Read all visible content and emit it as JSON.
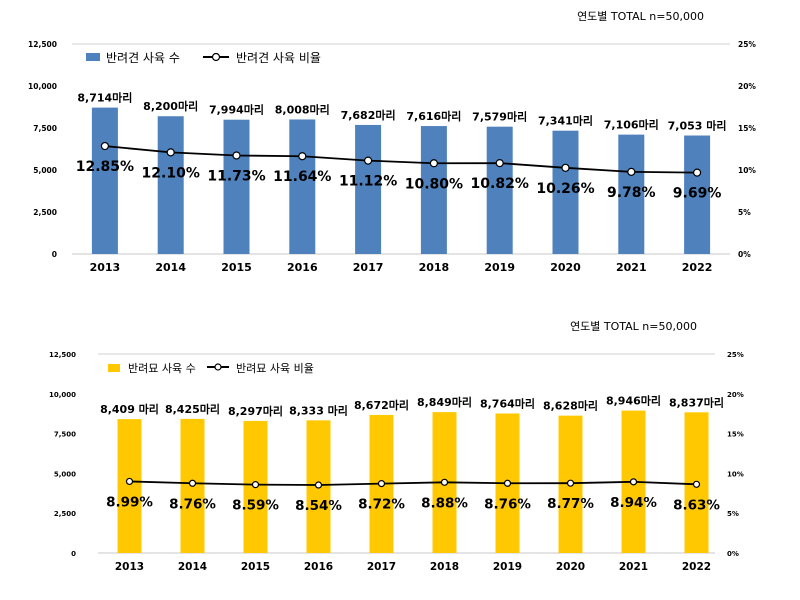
{
  "chart_data": [
    {
      "type": "bar",
      "header_note": "연도별  TOTAL n=50,000",
      "categories": [
        "2013",
        "2014",
        "2015",
        "2016",
        "2017",
        "2018",
        "2019",
        "2020",
        "2021",
        "2022"
      ],
      "series": [
        {
          "name": "반려견 사육 수",
          "kind": "bar",
          "axis": "left",
          "color": "#4F81BD",
          "values": [
            8714,
            8200,
            7994,
            8008,
            7682,
            7616,
            7579,
            7341,
            7106,
            7053
          ],
          "labels": [
            "8,714마리",
            "8,200마리",
            "7,994마리",
            "8,008마리",
            "7,682마리",
            "7,616마리",
            "7,579마리",
            "7,341마리",
            "7,106마리",
            "7,053 마리"
          ]
        },
        {
          "name": "반려견 사육 비율",
          "kind": "line",
          "axis": "right",
          "color": "#000000",
          "values": [
            12.85,
            12.1,
            11.73,
            11.64,
            11.12,
            10.8,
            10.82,
            10.26,
            9.78,
            9.69
          ],
          "labels": [
            "12.85%",
            "12.10%",
            "11.73%",
            "11.64%",
            "11.12%",
            "10.80%",
            "10.82%",
            "10.26%",
            "9.78%",
            "9.69%"
          ]
        }
      ],
      "y_left": {
        "ylim": [
          0,
          12500
        ],
        "ticks": [
          "0",
          "2,500",
          "5,000",
          "7,500",
          "10,000",
          "12,500"
        ]
      },
      "y_right": {
        "ylim": [
          0,
          25
        ],
        "ticks": [
          "0%",
          "5%",
          "10%",
          "15%",
          "20%",
          "25%"
        ]
      },
      "legend": "top-left",
      "grid": false
    },
    {
      "type": "bar",
      "header_note": "연도별 TOTAL n=50,000",
      "categories": [
        "2013",
        "2014",
        "2015",
        "2016",
        "2017",
        "2018",
        "2019",
        "2020",
        "2021",
        "2022"
      ],
      "series": [
        {
          "name": "반려묘 사육 수",
          "kind": "bar",
          "axis": "left",
          "color": "#FFC800",
          "values": [
            8409,
            8425,
            8297,
            8333,
            8672,
            8849,
            8764,
            8628,
            8946,
            8837
          ],
          "labels": [
            "8,409 마리",
            "8,425마리",
            "8,297마리",
            "8,333 마리",
            "8,672마리",
            "8,849마리",
            "8,764마리",
            "8,628마리",
            "8,946마리",
            "8,837마리"
          ]
        },
        {
          "name": "반려묘 사육 비율",
          "kind": "line",
          "axis": "right",
          "color": "#000000",
          "values": [
            8.99,
            8.76,
            8.59,
            8.54,
            8.72,
            8.88,
            8.76,
            8.77,
            8.94,
            8.63
          ],
          "labels": [
            "8.99%",
            "8.76%",
            "8.59%",
            "8.54%",
            "8.72%",
            "8.88%",
            "8.76%",
            "8.77%",
            "8.94%",
            "8.63%"
          ]
        }
      ],
      "y_left": {
        "ylim": [
          0,
          12500
        ],
        "ticks": [
          "0",
          "2,500",
          "5,000",
          "7,500",
          "10,000",
          "12,500"
        ]
      },
      "y_right": {
        "ylim": [
          0,
          25
        ],
        "ticks": [
          "0%",
          "5%",
          "10%",
          "15%",
          "20%",
          "25%"
        ]
      },
      "legend": "top-left",
      "grid": false
    }
  ]
}
